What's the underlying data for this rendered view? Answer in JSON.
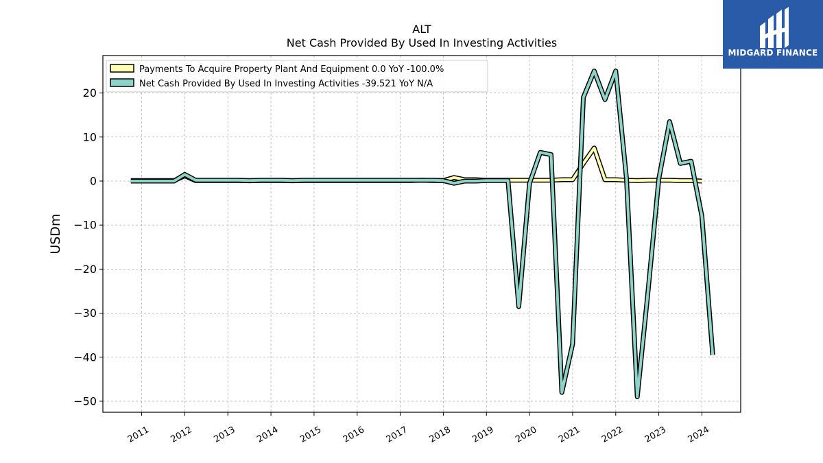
{
  "chart_data": {
    "type": "line",
    "title": "ALT",
    "subtitle": "Net Cash Provided By Used In Investing Activities",
    "ylabel": "USDm",
    "xlabel": "",
    "ylim": [
      -52.5,
      28.5
    ],
    "xlim": [
      2010.1,
      2024.9
    ],
    "yticks": [
      20,
      10,
      0,
      -10,
      -20,
      -30,
      -40,
      -50
    ],
    "ytick_labels": [
      "20",
      "10",
      "0",
      "−10",
      "−20",
      "−30",
      "−40",
      "−50"
    ],
    "xticks": [
      2011,
      2012,
      2013,
      2014,
      2015,
      2016,
      2017,
      2018,
      2019,
      2020,
      2021,
      2022,
      2023,
      2024
    ],
    "xtick_labels": [
      "2011",
      "2012",
      "2013",
      "2014",
      "2015",
      "2016",
      "2017",
      "2018",
      "2019",
      "2020",
      "2021",
      "2022",
      "2023",
      "2024"
    ],
    "grid": true,
    "legend_position": "top-left",
    "series": [
      {
        "name": "Payments To Acquire Property Plant And Equipment",
        "legend_label": "Payments To Acquire Property Plant And Equipment  0.0 YoY -100.0%",
        "color": "#ffffb3",
        "x": [
          2010.75,
          2011.0,
          2011.25,
          2011.5,
          2011.75,
          2012.0,
          2012.25,
          2012.5,
          2012.75,
          2013.0,
          2013.25,
          2013.5,
          2013.75,
          2014.0,
          2014.25,
          2014.5,
          2014.75,
          2015.0,
          2015.25,
          2015.5,
          2015.75,
          2016.0,
          2016.25,
          2016.5,
          2016.75,
          2017.0,
          2017.25,
          2017.5,
          2017.75,
          2018.0,
          2018.25,
          2018.5,
          2018.75,
          2019.0,
          2019.25,
          2019.5,
          2019.75,
          2020.0,
          2020.25,
          2020.5,
          2020.75,
          2021.0,
          2021.25,
          2021.5,
          2021.75,
          2022.0,
          2022.25,
          2022.5,
          2022.75,
          2023.0,
          2023.25,
          2023.5,
          2023.75,
          2024.0
        ],
        "y": [
          0.1,
          0.1,
          0.1,
          0.1,
          0.1,
          1.2,
          0.1,
          0.1,
          0.1,
          0.1,
          0.1,
          0.05,
          0.1,
          0.1,
          0.1,
          0.05,
          0.1,
          0.1,
          0.1,
          0.1,
          0.1,
          0.1,
          0.1,
          0.1,
          0.1,
          0.1,
          0.1,
          0.2,
          0.1,
          0.1,
          0.8,
          0.3,
          0.3,
          0.2,
          0.2,
          0.2,
          0.2,
          0.2,
          0.2,
          0.2,
          0.3,
          0.3,
          4.0,
          7.5,
          0.3,
          0.3,
          0.2,
          0.1,
          0.2,
          0.2,
          0.2,
          0.1,
          0.1,
          0.0
        ]
      },
      {
        "name": "Net Cash Provided By Used In Investing Activities",
        "legend_label": "Net Cash Provided By Used In Investing Activities  -39.521 YoY N/A",
        "color": "#8dd3c7",
        "x": [
          2010.75,
          2011.0,
          2011.25,
          2011.5,
          2011.75,
          2012.0,
          2012.25,
          2012.5,
          2012.75,
          2013.0,
          2013.25,
          2013.5,
          2013.75,
          2014.0,
          2014.25,
          2014.5,
          2014.75,
          2015.0,
          2015.25,
          2015.5,
          2015.75,
          2016.0,
          2016.25,
          2016.5,
          2016.75,
          2017.0,
          2017.25,
          2017.5,
          2017.75,
          2018.0,
          2018.25,
          2018.5,
          2018.75,
          2019.0,
          2019.25,
          2019.5,
          2019.75,
          2020.0,
          2020.25,
          2020.5,
          2020.75,
          2021.0,
          2021.25,
          2021.5,
          2021.75,
          2022.0,
          2022.25,
          2022.5,
          2022.75,
          2023.0,
          2023.25,
          2023.5,
          2023.75,
          2024.0,
          2024.25
        ],
        "y": [
          0.0,
          0.0,
          0.0,
          0.0,
          0.0,
          1.5,
          0.2,
          0.2,
          0.2,
          0.2,
          0.2,
          0.1,
          0.2,
          0.2,
          0.2,
          0.1,
          0.2,
          0.2,
          0.2,
          0.2,
          0.2,
          0.2,
          0.2,
          0.2,
          0.2,
          0.2,
          0.2,
          0.2,
          0.2,
          0.1,
          -0.5,
          0.0,
          0.0,
          0.1,
          0.1,
          0.1,
          -28.5,
          -0.5,
          6.5,
          6.0,
          -48.0,
          -37.0,
          19.0,
          25.0,
          18.5,
          25.0,
          0.5,
          -49.0,
          -25.0,
          0.5,
          13.5,
          4.0,
          4.5,
          -8.0,
          -39.5
        ]
      }
    ]
  },
  "watermark": {
    "brand": "MIDGARD FINANCE",
    "background": "#2a5ba8"
  }
}
